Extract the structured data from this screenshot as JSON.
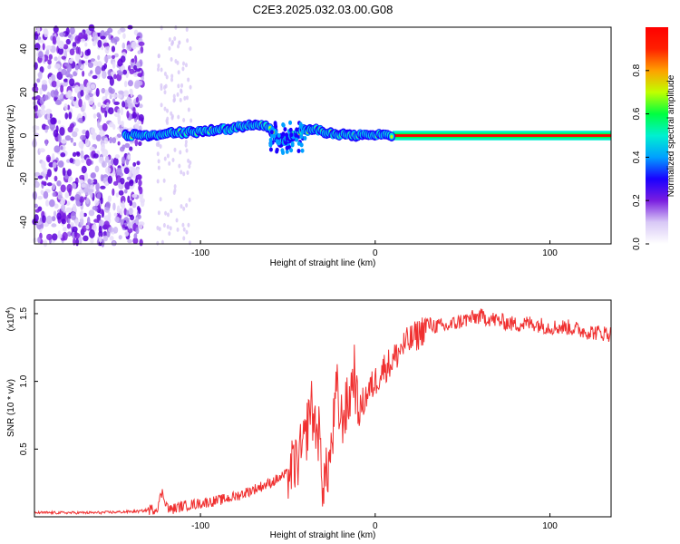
{
  "title": "C2E3.2025.032.03.00.G08",
  "chart_data": [
    {
      "type": "heatmap",
      "xlabel": "Height of straight line (km)",
      "ylabel": "Frequency (Hz)",
      "xlim": [
        -195,
        135
      ],
      "ylim": [
        -50,
        50
      ],
      "xticks": [
        -100,
        0,
        100
      ],
      "yticks": [
        -40,
        -20,
        0,
        20,
        40
      ],
      "colorbar": {
        "label": "Normalized spectral amplitude",
        "range": [
          0.0,
          1.0
        ],
        "ticks": [
          0.0,
          0.2,
          0.4,
          0.6,
          0.8
        ],
        "tick_labels": [
          "0.0",
          "0.2",
          "0.4",
          "0.6",
          "0.8"
        ],
        "colormap": [
          "#ffffff",
          "#d8c8f6",
          "#7a1ee0",
          "#1a00ff",
          "#00a0ff",
          "#00f0d0",
          "#00ff40",
          "#c0ff00",
          "#ffa000",
          "#ff2000",
          "#ff0000"
        ]
      },
      "signal": {
        "description_points_x": [
          -143,
          -130,
          -115,
          -100,
          -85,
          -70,
          -60,
          -55,
          -45,
          -35,
          -25,
          -15,
          -5,
          5,
          10,
          135
        ],
        "frequency": [
          0,
          0,
          1,
          2,
          3,
          5,
          4,
          -3,
          1,
          3,
          1,
          0,
          0,
          0.5,
          0,
          0
        ],
        "strong_band_from_x": 10,
        "noise_region_x": [
          -195,
          -133
        ]
      }
    },
    {
      "type": "line",
      "xlabel": "Height of straight line (km)",
      "ylabel": "SNR (10 * v/v)",
      "scale_label": "(x10",
      "scale_exponent": "4",
      "xlim": [
        -195,
        135
      ],
      "ylim": [
        0,
        1.6
      ],
      "xticks": [
        -100,
        0,
        100
      ],
      "yticks": [
        0.5,
        1.0,
        1.5
      ],
      "ytick_labels": [
        "0.5",
        "1.0",
        "1.5"
      ],
      "line_color": "#f03030",
      "series": [
        {
          "x": [
            -195,
            -160,
            -135,
            -125,
            -122,
            -118,
            -110,
            -100,
            -90,
            -80,
            -70,
            -60,
            -50,
            -45,
            -40,
            -37,
            -35,
            -32,
            -30,
            -28,
            -25,
            -22,
            -20,
            -15,
            -12,
            -10,
            -5,
            0,
            5,
            10,
            15,
            20,
            25,
            30,
            40,
            50,
            60,
            70,
            80,
            90,
            100,
            110,
            120,
            135
          ],
          "y": [
            0.03,
            0.03,
            0.04,
            0.06,
            0.18,
            0.05,
            0.08,
            0.1,
            0.12,
            0.15,
            0.2,
            0.25,
            0.32,
            0.4,
            0.55,
            0.85,
            0.7,
            0.6,
            0.25,
            0.3,
            0.5,
            0.95,
            0.7,
            0.85,
            1.1,
            0.75,
            0.9,
            1.0,
            1.1,
            1.15,
            1.25,
            1.3,
            1.35,
            1.42,
            1.4,
            1.45,
            1.48,
            1.45,
            1.42,
            1.43,
            1.4,
            1.4,
            1.37,
            1.35
          ]
        }
      ]
    }
  ]
}
